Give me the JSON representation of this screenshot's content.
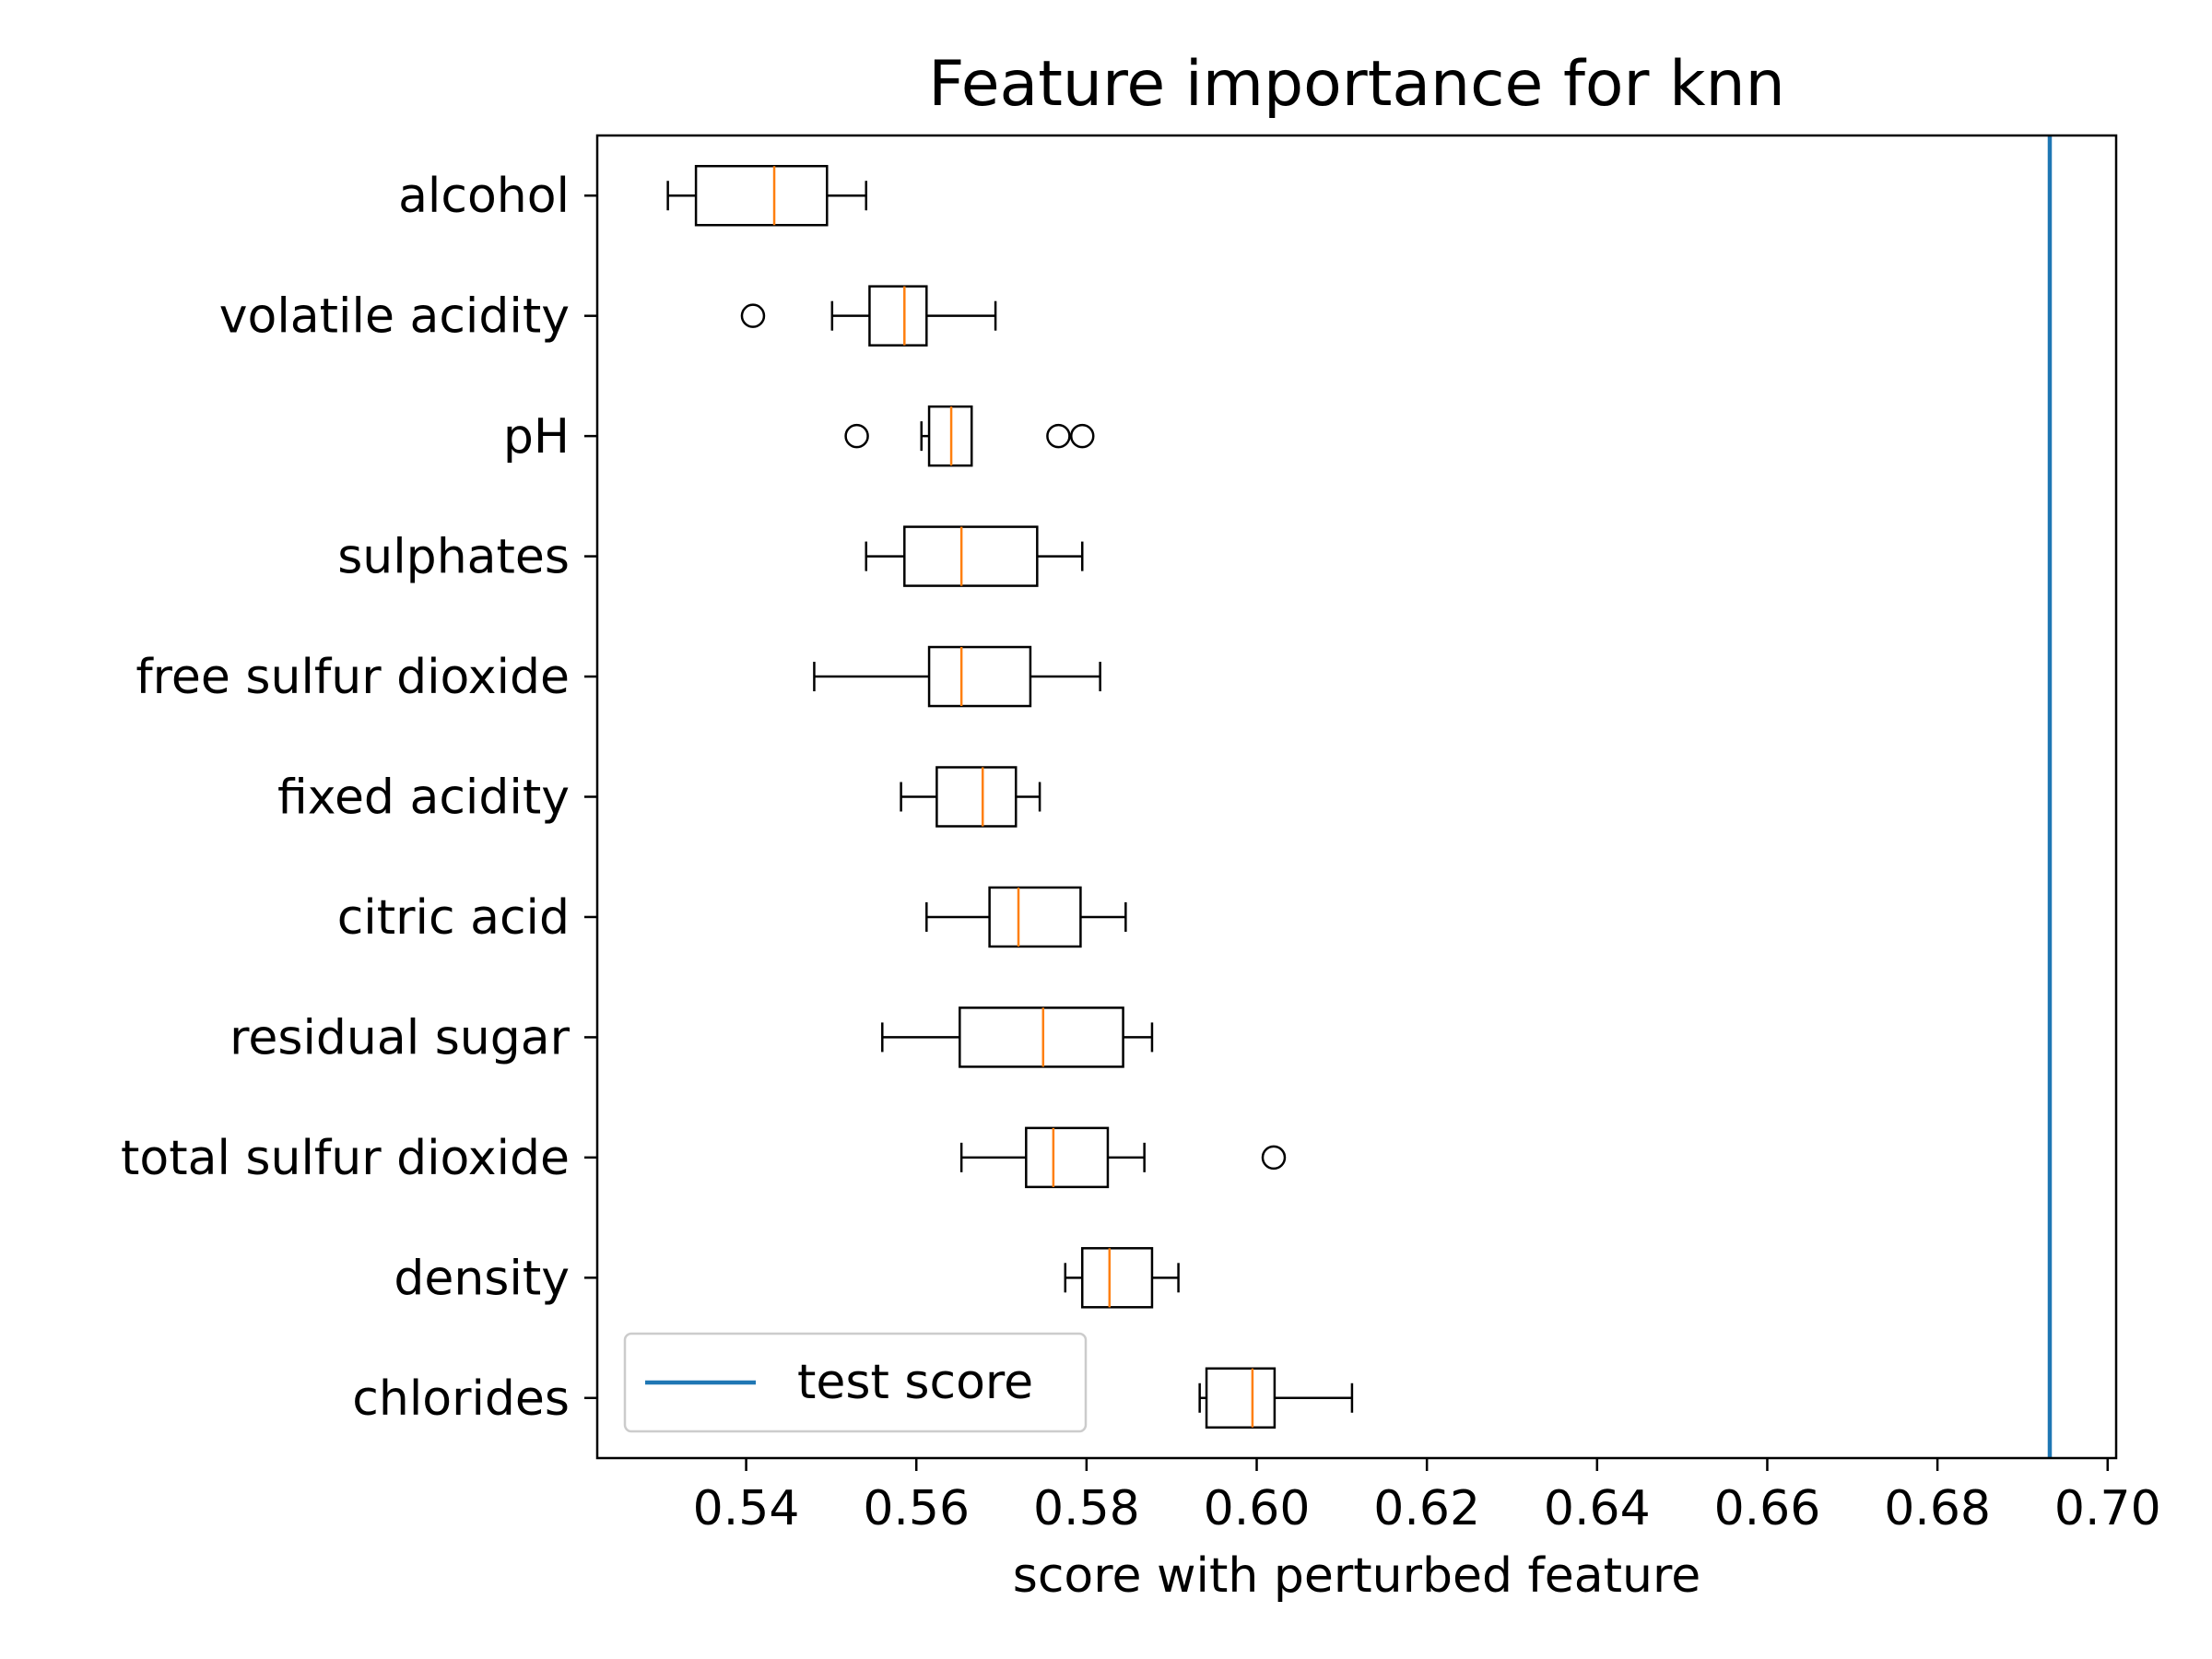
{
  "chart_data": {
    "type": "boxplot",
    "orientation": "horizontal",
    "title": "Feature importance for knn",
    "xlabel": "score with perturbed feature",
    "ylabel": "",
    "xlim": [
      0.5225,
      0.701
    ],
    "xticks": [
      "0.54",
      "0.56",
      "0.58",
      "0.60",
      "0.62",
      "0.64",
      "0.66",
      "0.68",
      "0.70"
    ],
    "xtick_values": [
      0.54,
      0.56,
      0.58,
      0.6,
      0.62,
      0.64,
      0.66,
      0.68,
      0.7
    ],
    "grid": false,
    "colors": {
      "box": "#000000",
      "median": "#ff7f0e",
      "reference_line": "#1f77b4"
    },
    "reference_line": {
      "name": "test score",
      "value": 0.6932
    },
    "legend": {
      "position": "lower-left",
      "entries": [
        "test score"
      ]
    },
    "features": [
      {
        "label": "alcohol",
        "whisker_low": 0.5308,
        "q1": 0.5341,
        "median": 0.5433,
        "q3": 0.5495,
        "whisker_high": 0.5541,
        "outliers": []
      },
      {
        "label": "volatile acidity",
        "whisker_low": 0.5501,
        "q1": 0.5545,
        "median": 0.5586,
        "q3": 0.5612,
        "whisker_high": 0.5693,
        "outliers": [
          0.5408
        ]
      },
      {
        "label": "pH",
        "whisker_low": 0.5606,
        "q1": 0.5615,
        "median": 0.5641,
        "q3": 0.5665,
        "whisker_high": null,
        "outliers": [
          0.553,
          0.5767,
          0.5795
        ]
      },
      {
        "label": "sulphates",
        "whisker_low": 0.5541,
        "q1": 0.5586,
        "median": 0.5653,
        "q3": 0.5742,
        "whisker_high": 0.5795,
        "outliers": []
      },
      {
        "label": "free sulfur dioxide",
        "whisker_low": 0.548,
        "q1": 0.5615,
        "median": 0.5653,
        "q3": 0.5734,
        "whisker_high": 0.5816,
        "outliers": []
      },
      {
        "label": "fixed acidity",
        "whisker_low": 0.5582,
        "q1": 0.5624,
        "median": 0.5678,
        "q3": 0.5717,
        "whisker_high": 0.5745,
        "outliers": []
      },
      {
        "label": "citric acid",
        "whisker_low": 0.5612,
        "q1": 0.5686,
        "median": 0.572,
        "q3": 0.5793,
        "whisker_high": 0.5846,
        "outliers": []
      },
      {
        "label": "residual sugar",
        "whisker_low": 0.556,
        "q1": 0.5651,
        "median": 0.5749,
        "q3": 0.5843,
        "whisker_high": 0.5877,
        "outliers": []
      },
      {
        "label": "total sulfur dioxide",
        "whisker_low": 0.5653,
        "q1": 0.5729,
        "median": 0.5761,
        "q3": 0.5825,
        "whisker_high": 0.5868,
        "outliers": [
          0.602
        ]
      },
      {
        "label": "density",
        "whisker_low": 0.5775,
        "q1": 0.5795,
        "median": 0.5827,
        "q3": 0.5877,
        "whisker_high": 0.5908,
        "outliers": []
      },
      {
        "label": "chlorides",
        "whisker_low": 0.5933,
        "q1": 0.5941,
        "median": 0.5995,
        "q3": 0.6021,
        "whisker_high": 0.6112,
        "outliers": []
      }
    ]
  }
}
